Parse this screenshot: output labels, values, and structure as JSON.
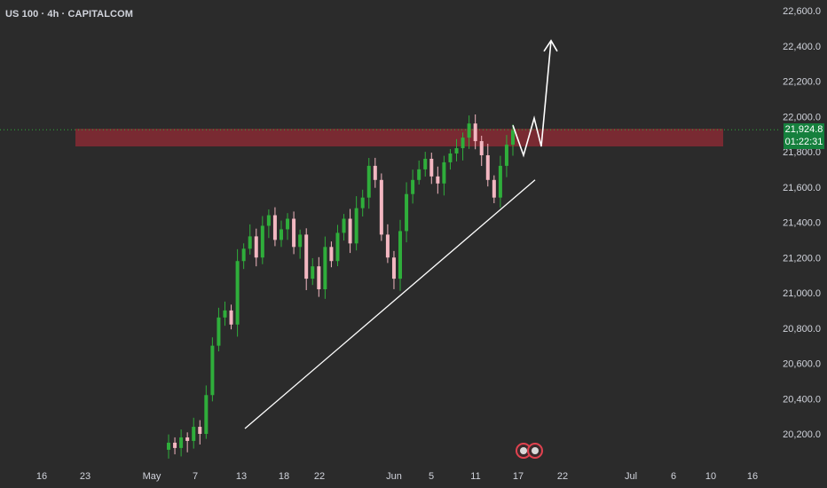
{
  "symbol_title": "US 100 · 4h · CAPITALCOM",
  "current_price": "21,924.8",
  "countdown": "01:22:31",
  "colors": {
    "background": "#2b2b2b",
    "bull": "#2fae3b",
    "bear": "#f3b7c1",
    "zone": "#7d2a33",
    "price_tag": "#15803d",
    "arrow": "#ffffff"
  },
  "chart_data": {
    "type": "candlestick",
    "title": "US 100 · 4h · CAPITALCOM",
    "ylim": [
      20100,
      22650
    ],
    "y_ticks": [
      "22,600.0",
      "22,400.0",
      "22,200.0",
      "22,000.0",
      "21,800.0",
      "21,600.0",
      "21,400.0",
      "21,200.0",
      "21,000.0",
      "20,800.0",
      "20,600.0",
      "20,400.0",
      "20,200.0"
    ],
    "y_tick_values": [
      22600,
      22400,
      22200,
      22000,
      21800,
      21600,
      21400,
      21200,
      21000,
      20800,
      20600,
      20400,
      20200
    ],
    "x_ticks": [
      "16",
      "23",
      "May",
      "7",
      "13",
      "18",
      "22",
      "Jun",
      "5",
      "11",
      "17",
      "22",
      "Jul",
      "6",
      "10",
      "16"
    ],
    "last_price": 21924.8,
    "resistance_zone": [
      21830,
      21930
    ],
    "trendline": [
      {
        "label": "May 9",
        "y": 20230
      },
      {
        "label": "Jun 18",
        "y": 21640
      }
    ],
    "projection_arrow": [
      {
        "label": "Jun 17",
        "y": 21950
      },
      {
        "label": "Jun 18",
        "y": 21780
      },
      {
        "label": "Jun 19",
        "y": 21990
      },
      {
        "label": "Jun 20",
        "y": 21830
      },
      {
        "label": "Jun 21",
        "y": 22430
      }
    ],
    "candles_approx_close": [
      20150,
      20120,
      20180,
      20160,
      20240,
      20200,
      20420,
      20700,
      20860,
      20900,
      20820,
      21180,
      21250,
      21320,
      21200,
      21380,
      21440,
      21300,
      21360,
      21420,
      21260,
      21330,
      21080,
      21150,
      21020,
      21260,
      21180,
      21340,
      21420,
      21280,
      21480,
      21540,
      21720,
      21640,
      21330,
      21200,
      21080,
      21350,
      21560,
      21640,
      21700,
      21760,
      21660,
      21620,
      21740,
      21790,
      21820,
      21880,
      21960,
      21860,
      21780,
      21640,
      21540,
      21720,
      21840,
      21920
    ],
    "event_markers": 2
  }
}
